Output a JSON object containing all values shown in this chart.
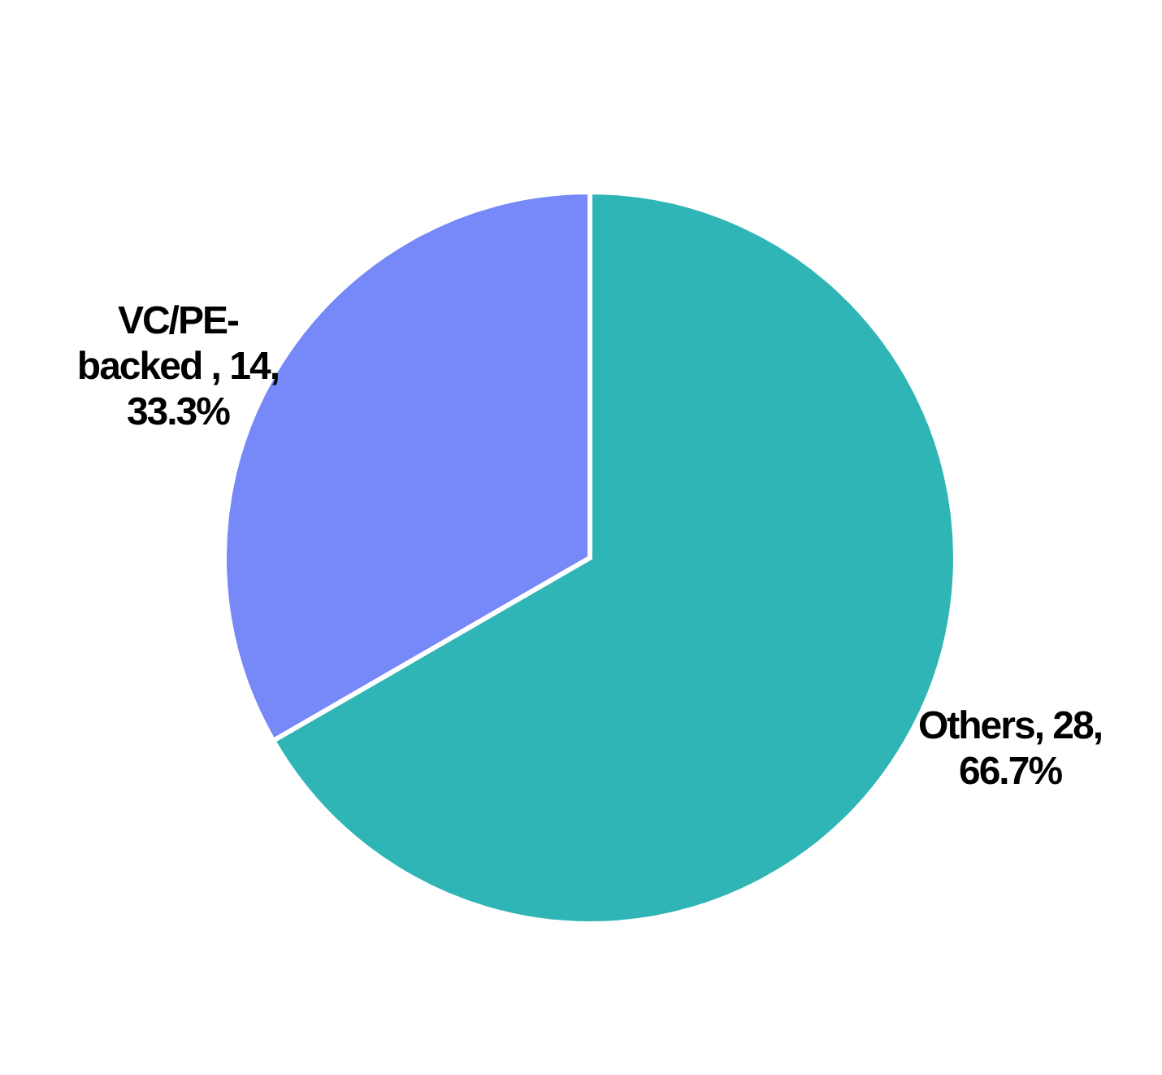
{
  "chart_data": {
    "type": "pie",
    "categories": [
      "VC/PE-backed ",
      "Others"
    ],
    "values": [
      14,
      28
    ],
    "colors": [
      "#7788f8",
      "#2fb5b5"
    ],
    "value_labels": [
      "14, 33.3%",
      "28, 66.7%"
    ]
  }
}
